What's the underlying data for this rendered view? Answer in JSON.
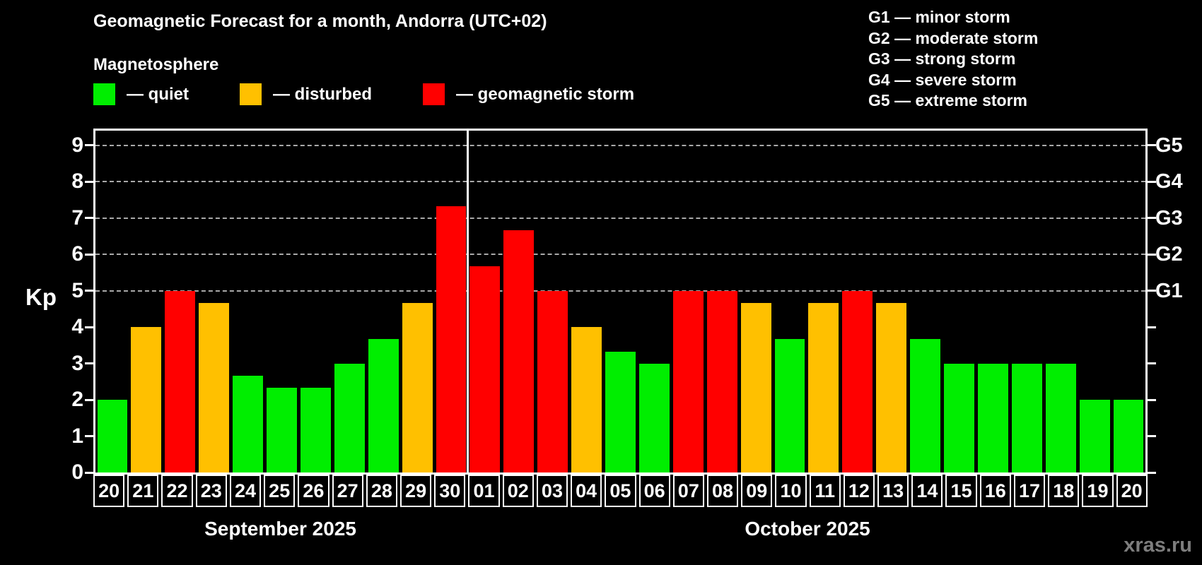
{
  "header": {
    "title": "Geomagnetic Forecast for a month, Andorra (UTC+02)",
    "subtitle": "Magnetosphere"
  },
  "legend": {
    "items": [
      {
        "label": "— quiet",
        "status": "quiet"
      },
      {
        "label": "— disturbed",
        "status": "disturbed"
      },
      {
        "label": "— geomagnetic storm",
        "status": "storm"
      }
    ]
  },
  "g_legend": {
    "items": [
      "G1 — minor storm",
      "G2 — moderate storm",
      "G3 — strong storm",
      "G4 — severe storm",
      "G5 — extreme storm"
    ]
  },
  "watermark": "xras.ru",
  "chart_data": {
    "type": "bar",
    "title": "Geomagnetic Forecast for a month, Andorra (UTC+02)",
    "ylabel": "Kp",
    "ylim": [
      0,
      9.4
    ],
    "yticks": [
      0,
      1,
      2,
      3,
      4,
      5,
      6,
      7,
      8,
      9
    ],
    "gridlines_at": [
      5,
      6,
      7,
      8,
      9
    ],
    "grid": "dashed horizontal lines at Kp 5-9 only",
    "right_axis": [
      {
        "label": "G1",
        "kp": 5
      },
      {
        "label": "G2",
        "kp": 6
      },
      {
        "label": "G3",
        "kp": 7
      },
      {
        "label": "G4",
        "kp": 8
      },
      {
        "label": "G5",
        "kp": 9
      }
    ],
    "categories": [
      "20",
      "21",
      "22",
      "23",
      "24",
      "25",
      "26",
      "27",
      "28",
      "29",
      "30",
      "01",
      "02",
      "03",
      "04",
      "05",
      "06",
      "07",
      "08",
      "09",
      "10",
      "11",
      "12",
      "13",
      "14",
      "15",
      "16",
      "17",
      "18",
      "19",
      "20"
    ],
    "values": [
      2,
      4,
      5,
      4.67,
      2.67,
      2.33,
      2.33,
      3,
      3.67,
      4.67,
      7.33,
      5.67,
      6.67,
      5,
      4,
      3.33,
      3,
      5,
      5,
      4.67,
      3.67,
      4.67,
      5,
      4.67,
      3.67,
      3,
      3,
      3,
      3,
      2,
      2
    ],
    "status": [
      "quiet",
      "disturbed",
      "storm",
      "disturbed",
      "quiet",
      "quiet",
      "quiet",
      "quiet",
      "quiet",
      "disturbed",
      "storm",
      "storm",
      "storm",
      "storm",
      "disturbed",
      "quiet",
      "quiet",
      "storm",
      "storm",
      "disturbed",
      "quiet",
      "disturbed",
      "storm",
      "disturbed",
      "quiet",
      "quiet",
      "quiet",
      "quiet",
      "quiet",
      "quiet",
      "quiet"
    ],
    "months": [
      {
        "label": "September 2025",
        "days": 11
      },
      {
        "label": "October 2025",
        "days": 20
      }
    ],
    "colors": {
      "quiet": "#00ee00",
      "disturbed": "#ffc000",
      "storm": "#ff0000"
    }
  }
}
